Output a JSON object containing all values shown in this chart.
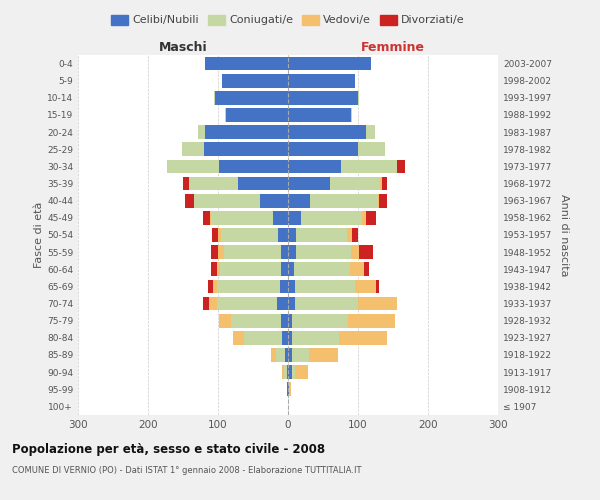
{
  "age_groups": [
    "100+",
    "95-99",
    "90-94",
    "85-89",
    "80-84",
    "75-79",
    "70-74",
    "65-69",
    "60-64",
    "55-59",
    "50-54",
    "45-49",
    "40-44",
    "35-39",
    "30-34",
    "25-29",
    "20-24",
    "15-19",
    "10-14",
    "5-9",
    "0-4"
  ],
  "birth_years": [
    "≤ 1907",
    "1908-1912",
    "1913-1917",
    "1918-1922",
    "1923-1927",
    "1928-1932",
    "1933-1937",
    "1938-1942",
    "1943-1947",
    "1948-1952",
    "1953-1957",
    "1958-1962",
    "1963-1967",
    "1968-1972",
    "1973-1977",
    "1978-1982",
    "1983-1987",
    "1988-1992",
    "1993-1997",
    "1998-2002",
    "2003-2007"
  ],
  "maschi": {
    "celibi": [
      0,
      1,
      2,
      5,
      8,
      10,
      16,
      12,
      10,
      10,
      14,
      22,
      40,
      72,
      98,
      120,
      118,
      88,
      105,
      95,
      118
    ],
    "coniugati": [
      0,
      1,
      4,
      12,
      55,
      72,
      85,
      90,
      87,
      82,
      82,
      88,
      95,
      70,
      75,
      32,
      10,
      2,
      1,
      0,
      0
    ],
    "vedovi": [
      0,
      0,
      2,
      7,
      15,
      17,
      12,
      5,
      5,
      8,
      4,
      2,
      0,
      0,
      0,
      0,
      0,
      0,
      0,
      0,
      0
    ],
    "divorziati": [
      0,
      0,
      0,
      0,
      0,
      0,
      8,
      8,
      8,
      10,
      8,
      10,
      12,
      8,
      0,
      0,
      0,
      0,
      0,
      0,
      0
    ]
  },
  "femmine": {
    "nubili": [
      0,
      2,
      5,
      5,
      5,
      5,
      10,
      10,
      8,
      12,
      12,
      18,
      32,
      60,
      75,
      100,
      112,
      90,
      100,
      95,
      118
    ],
    "coniugate": [
      0,
      0,
      5,
      25,
      68,
      80,
      90,
      85,
      80,
      78,
      72,
      88,
      96,
      72,
      80,
      38,
      12,
      2,
      1,
      0,
      0
    ],
    "vedove": [
      0,
      2,
      18,
      42,
      68,
      68,
      55,
      30,
      20,
      12,
      8,
      5,
      2,
      2,
      0,
      0,
      0,
      0,
      0,
      0,
      0
    ],
    "divorziate": [
      0,
      0,
      0,
      0,
      0,
      0,
      0,
      5,
      8,
      20,
      8,
      15,
      12,
      8,
      12,
      0,
      0,
      0,
      0,
      0,
      0
    ]
  },
  "colors": {
    "celibi": "#4472c4",
    "coniugati": "#c5d8a4",
    "vedovi": "#f5c06e",
    "divorziati": "#cc2222"
  },
  "title": "Popolazione per età, sesso e stato civile - 2008",
  "subtitle": "COMUNE DI VERNIO (PO) - Dati ISTAT 1° gennaio 2008 - Elaborazione TUTTITALIA.IT",
  "xlabel_left": "Maschi",
  "xlabel_right": "Femmine",
  "ylabel_left": "Fasce di età",
  "ylabel_right": "Anni di nascita",
  "xlim": 300,
  "legend_labels": [
    "Celibi/Nubili",
    "Coniugati/e",
    "Vedovi/e",
    "Divorziati/e"
  ],
  "bg_color": "#f0f0f0",
  "plot_bg": "#ffffff"
}
